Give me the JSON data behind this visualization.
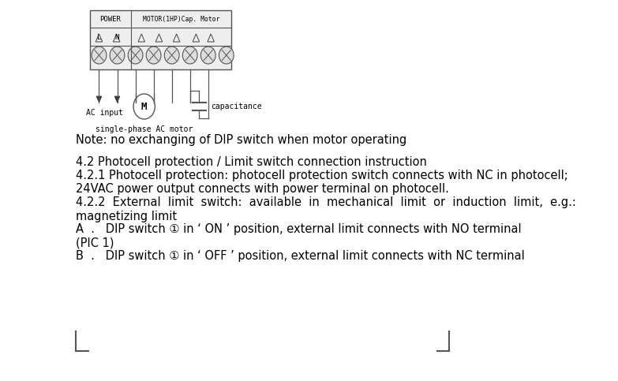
{
  "bg_color": "#ffffff",
  "text_color": "#000000",
  "note_line": "Note: no exchanging of DIP switch when motor operating",
  "section_42": "4.2 Photocell protection / Limit switch connection instruction",
  "section_421": "4.2.1 Photocell protection: photocell protection switch connects with NC in photocell;",
  "section_421b": "24VAC power output connects with power terminal on photocell.",
  "section_422": "4.2.2  External  limit  switch:  available  in  mechanical  limit  or  induction  limit,  e.g.:",
  "section_422b": "magnetizing limit",
  "section_A": "A  .   DIP switch ① in ‘ ON ’ position, external limit connects with NO terminal",
  "section_Ab": "(PIC 1)",
  "section_B": "B  .   DIP switch ① in ‘ OFF ’ position, external limit connects with NC terminal",
  "label_power": "POWER",
  "label_motor": "MOTOR(1HP)Cap. Motor",
  "label_L": "L",
  "label_N": "N",
  "label_ac_input": "AC input",
  "label_M": "M",
  "label_capacitance": "capacitance",
  "label_single_phase": "single-phase AC motor",
  "font_size_main": 10.5,
  "font_size_diagram": 7
}
